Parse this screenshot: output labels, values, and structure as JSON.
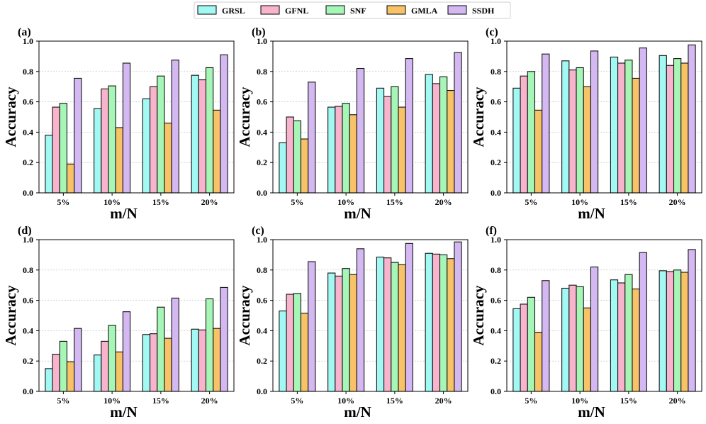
{
  "legend": [
    "GRSL",
    "GFNL",
    "SNF",
    "GMLA",
    "SSDH"
  ],
  "colors": [
    "#a2f8f3",
    "#f8b4cc",
    "#a6f7b7",
    "#f8c268",
    "#d3b8f2"
  ],
  "chart_data": [
    {
      "type": "bar",
      "panel_label": "(a)",
      "categories": [
        "5%",
        "10%",
        "15%",
        "20%"
      ],
      "xlabel": "m/N",
      "ylabel": "Accuracy",
      "ylim": [
        0,
        1.0
      ],
      "yticks": [
        "0.0",
        "0.2",
        "0.4",
        "0.6",
        "0.8",
        "1.0"
      ],
      "series": [
        {
          "name": "GRSL",
          "values": [
            0.38,
            0.555,
            0.62,
            0.775
          ]
        },
        {
          "name": "GFNL",
          "values": [
            0.565,
            0.685,
            0.7,
            0.745
          ]
        },
        {
          "name": "SNF",
          "values": [
            0.59,
            0.705,
            0.77,
            0.825
          ]
        },
        {
          "name": "GMLA",
          "values": [
            0.19,
            0.43,
            0.46,
            0.545
          ]
        },
        {
          "name": "SSDH",
          "values": [
            0.755,
            0.855,
            0.875,
            0.91
          ]
        }
      ]
    },
    {
      "type": "bar",
      "panel_label": "(b)",
      "categories": [
        "5%",
        "10%",
        "15%",
        "20%"
      ],
      "xlabel": "m/N",
      "ylabel": "Accuracy",
      "ylim": [
        0,
        1.0
      ],
      "yticks": [
        "0.0",
        "0.2",
        "0.4",
        "0.6",
        "0.8",
        "1.0"
      ],
      "series": [
        {
          "name": "GRSL",
          "values": [
            0.33,
            0.565,
            0.69,
            0.78
          ]
        },
        {
          "name": "GFNL",
          "values": [
            0.5,
            0.57,
            0.635,
            0.72
          ]
        },
        {
          "name": "SNF",
          "values": [
            0.475,
            0.59,
            0.7,
            0.765
          ]
        },
        {
          "name": "GMLA",
          "values": [
            0.355,
            0.515,
            0.565,
            0.675
          ]
        },
        {
          "name": "SSDH",
          "values": [
            0.73,
            0.82,
            0.885,
            0.925
          ]
        }
      ]
    },
    {
      "type": "bar",
      "panel_label": "(c)",
      "categories": [
        "5%",
        "10%",
        "15%",
        "20%"
      ],
      "xlabel": "m/N",
      "ylabel": "Accuracy",
      "ylim": [
        0,
        1.0
      ],
      "yticks": [
        "0.0",
        "0.2",
        "0.4",
        "0.6",
        "0.8",
        "1.0"
      ],
      "series": [
        {
          "name": "GRSL",
          "values": [
            0.69,
            0.87,
            0.895,
            0.905
          ]
        },
        {
          "name": "GFNL",
          "values": [
            0.77,
            0.81,
            0.855,
            0.84
          ]
        },
        {
          "name": "SNF",
          "values": [
            0.8,
            0.825,
            0.875,
            0.885
          ]
        },
        {
          "name": "GMLA",
          "values": [
            0.545,
            0.7,
            0.755,
            0.855
          ]
        },
        {
          "name": "SSDH",
          "values": [
            0.915,
            0.935,
            0.955,
            0.975
          ]
        }
      ]
    },
    {
      "type": "bar",
      "panel_label": "(d)",
      "categories": [
        "5%",
        "10%",
        "15%",
        "20%"
      ],
      "xlabel": "m/N",
      "ylabel": "Accuracy",
      "ylim": [
        0,
        1.0
      ],
      "yticks": [
        "0.0",
        "0.2",
        "0.4",
        "0.6",
        "0.8",
        "1.0"
      ],
      "series": [
        {
          "name": "GRSL",
          "values": [
            0.15,
            0.24,
            0.375,
            0.41
          ]
        },
        {
          "name": "GFNL",
          "values": [
            0.245,
            0.33,
            0.38,
            0.405
          ]
        },
        {
          "name": "SNF",
          "values": [
            0.33,
            0.435,
            0.555,
            0.61
          ]
        },
        {
          "name": "GMLA",
          "values": [
            0.195,
            0.26,
            0.35,
            0.415
          ]
        },
        {
          "name": "SSDH",
          "values": [
            0.415,
            0.525,
            0.615,
            0.685
          ]
        }
      ]
    },
    {
      "type": "bar",
      "panel_label": "(c)",
      "categories": [
        "5%",
        "10%",
        "15%",
        "20%"
      ],
      "xlabel": "m/N",
      "ylabel": "Accuracy",
      "ylim": [
        0,
        1.0
      ],
      "yticks": [
        "0.0",
        "0.2",
        "0.4",
        "0.6",
        "0.8",
        "1.0"
      ],
      "series": [
        {
          "name": "GRSL",
          "values": [
            0.53,
            0.78,
            0.885,
            0.91
          ]
        },
        {
          "name": "GFNL",
          "values": [
            0.64,
            0.76,
            0.88,
            0.905
          ]
        },
        {
          "name": "SNF",
          "values": [
            0.645,
            0.81,
            0.85,
            0.9
          ]
        },
        {
          "name": "GMLA",
          "values": [
            0.515,
            0.77,
            0.835,
            0.875
          ]
        },
        {
          "name": "SSDH",
          "values": [
            0.855,
            0.94,
            0.975,
            0.985
          ]
        }
      ]
    },
    {
      "type": "bar",
      "panel_label": "(f)",
      "categories": [
        "5%",
        "10%",
        "15%",
        "20%"
      ],
      "xlabel": "m/N",
      "ylabel": "Accuracy",
      "ylim": [
        0,
        1.0
      ],
      "yticks": [
        "0.0",
        "0.2",
        "0.4",
        "0.6",
        "0.8",
        "1.0"
      ],
      "series": [
        {
          "name": "GRSL",
          "values": [
            0.545,
            0.68,
            0.735,
            0.795
          ]
        },
        {
          "name": "GFNL",
          "values": [
            0.575,
            0.7,
            0.715,
            0.79
          ]
        },
        {
          "name": "SNF",
          "values": [
            0.62,
            0.69,
            0.77,
            0.8
          ]
        },
        {
          "name": "GMLA",
          "values": [
            0.39,
            0.55,
            0.675,
            0.785
          ]
        },
        {
          "name": "SSDH",
          "values": [
            0.73,
            0.82,
            0.915,
            0.935
          ]
        }
      ]
    }
  ]
}
